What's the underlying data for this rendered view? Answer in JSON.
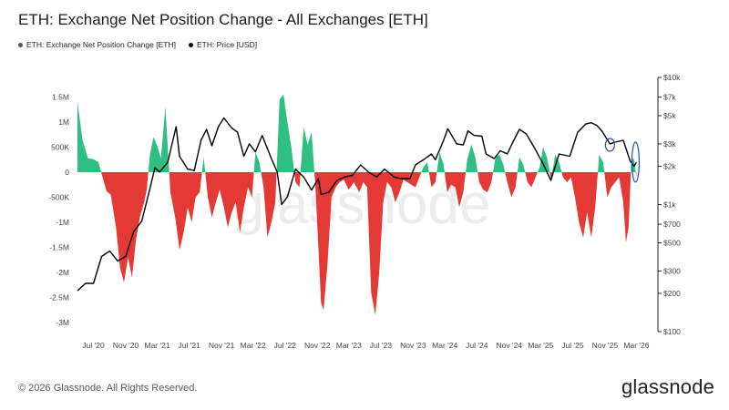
{
  "header": {
    "title": "ETH: Exchange Net Position Change - All Exchanges [ETH]"
  },
  "legend": [
    {
      "label": "ETH: Exchange Net Position Change [ETH]",
      "color": "#555555"
    },
    {
      "label": "ETH: Price [USD]",
      "color": "#111111"
    }
  ],
  "watermark": "glassnode",
  "footer": {
    "copyright": "© 2026 Glassnode. All Rights Reserved.",
    "brand": "glassnode"
  },
  "colors": {
    "positive": "#2fbf83",
    "negative": "#e53935",
    "price": "#000000",
    "highlight": "#1f4fb5"
  },
  "chart_data": {
    "type": "area",
    "x_axis": {
      "range": [
        "2020-05-01",
        "2026-05-01"
      ],
      "ticks": [
        {
          "date": "2020-07-01",
          "label": "Jul '20"
        },
        {
          "date": "2020-11-01",
          "label": "Nov '20"
        },
        {
          "date": "2021-03-01",
          "label": "Mar '21"
        },
        {
          "date": "2021-07-01",
          "label": "Jul '21"
        },
        {
          "date": "2021-11-01",
          "label": "Nov '21"
        },
        {
          "date": "2022-03-01",
          "label": "Mar '22"
        },
        {
          "date": "2022-07-01",
          "label": "Jul '22"
        },
        {
          "date": "2022-11-01",
          "label": "Nov '22"
        },
        {
          "date": "2023-03-01",
          "label": "Mar '23"
        },
        {
          "date": "2023-07-01",
          "label": "Jul '23"
        },
        {
          "date": "2023-11-01",
          "label": "Nov '23"
        },
        {
          "date": "2024-03-01",
          "label": "Mar '24"
        },
        {
          "date": "2024-07-01",
          "label": "Jul '24"
        },
        {
          "date": "2024-11-01",
          "label": "Nov '24"
        },
        {
          "date": "2025-03-01",
          "label": "Mar '25"
        },
        {
          "date": "2025-07-01",
          "label": "Jul '25"
        },
        {
          "date": "2025-11-01",
          "label": "Nov '25"
        },
        {
          "date": "2026-03-01",
          "label": "Mar '26"
        }
      ]
    },
    "y_left": {
      "range": [
        -3100000,
        1650000
      ],
      "ticks": [
        {
          "value": 1500000,
          "label": "1.5M"
        },
        {
          "value": 1000000,
          "label": "1M"
        },
        {
          "value": 500000,
          "label": "500K"
        },
        {
          "value": 0,
          "label": "0"
        },
        {
          "value": -500000,
          "label": "-500K"
        },
        {
          "value": -1000000,
          "label": "-1M"
        },
        {
          "value": -1500000,
          "label": "-1.5M"
        },
        {
          "value": -2000000,
          "label": "-2M"
        },
        {
          "value": -2500000,
          "label": "-2.5M"
        },
        {
          "value": -3000000,
          "label": "-3M"
        }
      ]
    },
    "y_right": {
      "scale": "log",
      "range": [
        100,
        10000
      ],
      "ticks": [
        {
          "value": 10000,
          "label": "$10k"
        },
        {
          "value": 7000,
          "label": "$7k"
        },
        {
          "value": 5000,
          "label": "$5k"
        },
        {
          "value": 3000,
          "label": "$3k"
        },
        {
          "value": 2000,
          "label": "$2k"
        },
        {
          "value": 1000,
          "label": "$1k"
        },
        {
          "value": 700,
          "label": "$700"
        },
        {
          "value": 500,
          "label": "$500"
        },
        {
          "value": 300,
          "label": "$300"
        },
        {
          "value": 200,
          "label": "$200"
        },
        {
          "value": 100,
          "label": "$100"
        }
      ]
    },
    "series": [
      {
        "name": "ETH: Exchange Net Position Change [ETH]",
        "type": "area",
        "points": [
          [
            "2020-05-01",
            1400000
          ],
          [
            "2020-05-20",
            650000
          ],
          [
            "2020-06-10",
            280000
          ],
          [
            "2020-07-01",
            260000
          ],
          [
            "2020-07-20",
            200000
          ],
          [
            "2020-08-05",
            -100000
          ],
          [
            "2020-08-20",
            -380000
          ],
          [
            "2020-09-05",
            -450000
          ],
          [
            "2020-09-25",
            -1100000
          ],
          [
            "2020-10-10",
            -1900000
          ],
          [
            "2020-10-25",
            -2200000
          ],
          [
            "2020-11-10",
            -1700000
          ],
          [
            "2020-11-25",
            -2100000
          ],
          [
            "2020-12-10",
            -1350000
          ],
          [
            "2020-12-25",
            -900000
          ],
          [
            "2021-01-10",
            -600000
          ],
          [
            "2021-01-20",
            -350000
          ],
          [
            "2021-02-01",
            350000
          ],
          [
            "2021-02-15",
            700000
          ],
          [
            "2021-03-01",
            520000
          ],
          [
            "2021-03-15",
            280000
          ],
          [
            "2021-04-01",
            1300000
          ],
          [
            "2021-04-20",
            -400000
          ],
          [
            "2021-05-10",
            -950000
          ],
          [
            "2021-05-25",
            -1550000
          ],
          [
            "2021-06-10",
            -1200000
          ],
          [
            "2021-06-25",
            -700000
          ],
          [
            "2021-07-10",
            -1000000
          ],
          [
            "2021-07-25",
            -500000
          ],
          [
            "2021-08-10",
            -400000
          ],
          [
            "2021-08-25",
            300000
          ],
          [
            "2021-09-10",
            -500000
          ],
          [
            "2021-09-25",
            -900000
          ],
          [
            "2021-10-10",
            -600000
          ],
          [
            "2021-10-25",
            -350000
          ],
          [
            "2021-11-10",
            -700000
          ],
          [
            "2021-11-25",
            -1100000
          ],
          [
            "2021-12-10",
            -800000
          ],
          [
            "2021-12-25",
            -600000
          ],
          [
            "2022-01-10",
            -1200000
          ],
          [
            "2022-01-25",
            -700000
          ],
          [
            "2022-02-10",
            -300000
          ],
          [
            "2022-02-25",
            -500000
          ],
          [
            "2022-03-10",
            400000
          ],
          [
            "2022-03-25",
            200000
          ],
          [
            "2022-04-10",
            -300000
          ],
          [
            "2022-04-25",
            -1300000
          ],
          [
            "2022-05-10",
            -1000000
          ],
          [
            "2022-05-25",
            -600000
          ],
          [
            "2022-06-10",
            1450000
          ],
          [
            "2022-06-25",
            1550000
          ],
          [
            "2022-07-10",
            1000000
          ],
          [
            "2022-07-25",
            500000
          ],
          [
            "2022-08-10",
            -200000
          ],
          [
            "2022-08-25",
            -300000
          ],
          [
            "2022-09-10",
            900000
          ],
          [
            "2022-09-25",
            550000
          ],
          [
            "2022-10-10",
            800000
          ],
          [
            "2022-10-25",
            -300000
          ],
          [
            "2022-11-05",
            -1500000
          ],
          [
            "2022-11-15",
            -2600000
          ],
          [
            "2022-11-25",
            -2750000
          ],
          [
            "2022-12-10",
            -1800000
          ],
          [
            "2022-12-25",
            -500000
          ],
          [
            "2023-01-10",
            -300000
          ],
          [
            "2023-01-25",
            -200000
          ],
          [
            "2023-02-10",
            -150000
          ],
          [
            "2023-03-01",
            -350000
          ],
          [
            "2023-03-20",
            -200000
          ],
          [
            "2023-04-10",
            -400000
          ],
          [
            "2023-04-25",
            -200000
          ],
          [
            "2023-05-10",
            -300000
          ],
          [
            "2023-05-25",
            -2400000
          ],
          [
            "2023-06-10",
            -2850000
          ],
          [
            "2023-06-25",
            -2000000
          ],
          [
            "2023-07-10",
            -600000
          ],
          [
            "2023-07-25",
            -200000
          ],
          [
            "2023-08-10",
            -300000
          ],
          [
            "2023-08-25",
            -600000
          ],
          [
            "2023-09-10",
            -400000
          ],
          [
            "2023-09-25",
            -150000
          ],
          [
            "2023-10-10",
            -200000
          ],
          [
            "2023-11-10",
            -300000
          ],
          [
            "2023-11-25",
            -100000
          ],
          [
            "2023-12-10",
            100000
          ],
          [
            "2023-12-25",
            200000
          ],
          [
            "2024-01-10",
            -300000
          ],
          [
            "2024-01-25",
            -200000
          ],
          [
            "2024-02-10",
            400000
          ],
          [
            "2024-02-25",
            150000
          ],
          [
            "2024-03-10",
            -400000
          ],
          [
            "2024-03-25",
            -250000
          ],
          [
            "2024-04-10",
            -300000
          ],
          [
            "2024-04-25",
            -700000
          ],
          [
            "2024-05-10",
            -400000
          ],
          [
            "2024-05-25",
            250000
          ],
          [
            "2024-06-10",
            550000
          ],
          [
            "2024-06-25",
            300000
          ],
          [
            "2024-07-10",
            -200000
          ],
          [
            "2024-07-25",
            -350000
          ],
          [
            "2024-08-10",
            -400000
          ],
          [
            "2024-08-25",
            -200000
          ],
          [
            "2024-09-10",
            300000
          ],
          [
            "2024-09-25",
            350000
          ],
          [
            "2024-10-10",
            150000
          ],
          [
            "2024-10-25",
            -200000
          ],
          [
            "2024-11-10",
            -500000
          ],
          [
            "2024-11-25",
            -300000
          ],
          [
            "2024-12-10",
            300000
          ],
          [
            "2024-12-25",
            150000
          ],
          [
            "2025-01-10",
            -200000
          ],
          [
            "2025-01-25",
            -300000
          ],
          [
            "2025-02-10",
            -100000
          ],
          [
            "2025-02-25",
            100000
          ],
          [
            "2025-03-10",
            500000
          ],
          [
            "2025-03-25",
            300000
          ],
          [
            "2025-04-10",
            -150000
          ],
          [
            "2025-04-25",
            350000
          ],
          [
            "2025-05-10",
            200000
          ],
          [
            "2025-05-25",
            -100000
          ],
          [
            "2025-06-10",
            -200000
          ],
          [
            "2025-06-25",
            -100000
          ],
          [
            "2025-07-10",
            -500000
          ],
          [
            "2025-07-25",
            -1000000
          ],
          [
            "2025-08-10",
            -1300000
          ],
          [
            "2025-08-25",
            -800000
          ],
          [
            "2025-09-10",
            -1300000
          ],
          [
            "2025-09-25",
            -700000
          ],
          [
            "2025-10-10",
            350000
          ],
          [
            "2025-10-25",
            200000
          ],
          [
            "2025-11-10",
            -500000
          ],
          [
            "2025-11-25",
            -300000
          ],
          [
            "2025-12-10",
            -200000
          ],
          [
            "2025-12-25",
            -100000
          ],
          [
            "2026-01-10",
            -600000
          ],
          [
            "2026-01-20",
            -1400000
          ],
          [
            "2026-01-30",
            -1100000
          ],
          [
            "2026-02-10",
            300000
          ],
          [
            "2026-02-20",
            250000
          ],
          [
            "2026-03-01",
            -100000
          ]
        ]
      },
      {
        "name": "ETH: Price [USD]",
        "type": "line",
        "points": [
          [
            "2020-05-01",
            210
          ],
          [
            "2020-06-01",
            240
          ],
          [
            "2020-07-01",
            240
          ],
          [
            "2020-08-01",
            390
          ],
          [
            "2020-09-01",
            430
          ],
          [
            "2020-10-01",
            360
          ],
          [
            "2020-11-01",
            390
          ],
          [
            "2020-12-01",
            610
          ],
          [
            "2021-01-01",
            740
          ],
          [
            "2021-02-01",
            1330
          ],
          [
            "2021-02-20",
            1950
          ],
          [
            "2021-03-10",
            1800
          ],
          [
            "2021-04-10",
            2150
          ],
          [
            "2021-05-12",
            4100
          ],
          [
            "2021-05-25",
            2400
          ],
          [
            "2021-06-25",
            1900
          ],
          [
            "2021-07-20",
            1850
          ],
          [
            "2021-08-15",
            3200
          ],
          [
            "2021-09-05",
            3900
          ],
          [
            "2021-09-25",
            2900
          ],
          [
            "2021-10-20",
            4100
          ],
          [
            "2021-11-10",
            4800
          ],
          [
            "2021-12-10",
            4000
          ],
          [
            "2022-01-01",
            3700
          ],
          [
            "2022-01-25",
            2400
          ],
          [
            "2022-02-15",
            3000
          ],
          [
            "2022-03-10",
            2600
          ],
          [
            "2022-04-05",
            3500
          ],
          [
            "2022-05-10",
            2300
          ],
          [
            "2022-06-01",
            1800
          ],
          [
            "2022-06-18",
            1000
          ],
          [
            "2022-07-10",
            1150
          ],
          [
            "2022-08-10",
            1900
          ],
          [
            "2022-09-10",
            1650
          ],
          [
            "2022-10-10",
            1300
          ],
          [
            "2022-11-05",
            1600
          ],
          [
            "2022-11-15",
            1200
          ],
          [
            "2022-12-15",
            1250
          ],
          [
            "2023-01-15",
            1550
          ],
          [
            "2023-02-15",
            1650
          ],
          [
            "2023-03-15",
            1700
          ],
          [
            "2023-04-15",
            2050
          ],
          [
            "2023-05-15",
            1800
          ],
          [
            "2023-06-15",
            1650
          ],
          [
            "2023-07-15",
            1900
          ],
          [
            "2023-08-20",
            1650
          ],
          [
            "2023-09-15",
            1600
          ],
          [
            "2023-10-20",
            1600
          ],
          [
            "2023-11-10",
            2050
          ],
          [
            "2023-12-10",
            2250
          ],
          [
            "2024-01-10",
            2500
          ],
          [
            "2024-01-25",
            2250
          ],
          [
            "2024-02-25",
            3200
          ],
          [
            "2024-03-12",
            3950
          ],
          [
            "2024-04-15",
            3000
          ],
          [
            "2024-05-10",
            2950
          ],
          [
            "2024-05-28",
            3800
          ],
          [
            "2024-06-20",
            3500
          ],
          [
            "2024-07-20",
            3450
          ],
          [
            "2024-08-05",
            2500
          ],
          [
            "2024-09-05",
            2300
          ],
          [
            "2024-09-28",
            2650
          ],
          [
            "2024-10-25",
            2500
          ],
          [
            "2024-11-15",
            3100
          ],
          [
            "2024-12-10",
            3900
          ],
          [
            "2025-01-05",
            3600
          ],
          [
            "2025-02-05",
            2800
          ],
          [
            "2025-03-10",
            2100
          ],
          [
            "2025-04-09",
            1550
          ],
          [
            "2025-05-10",
            2500
          ],
          [
            "2025-06-20",
            2400
          ],
          [
            "2025-07-20",
            3700
          ],
          [
            "2025-08-20",
            4300
          ],
          [
            "2025-09-10",
            4400
          ],
          [
            "2025-10-01",
            4200
          ],
          [
            "2025-10-20",
            3800
          ],
          [
            "2025-11-20",
            3000
          ],
          [
            "2025-12-10",
            3100
          ],
          [
            "2026-01-10",
            3200
          ],
          [
            "2026-02-05",
            2200
          ],
          [
            "2026-02-20",
            2000
          ],
          [
            "2026-03-01",
            2150
          ]
        ]
      }
    ]
  }
}
